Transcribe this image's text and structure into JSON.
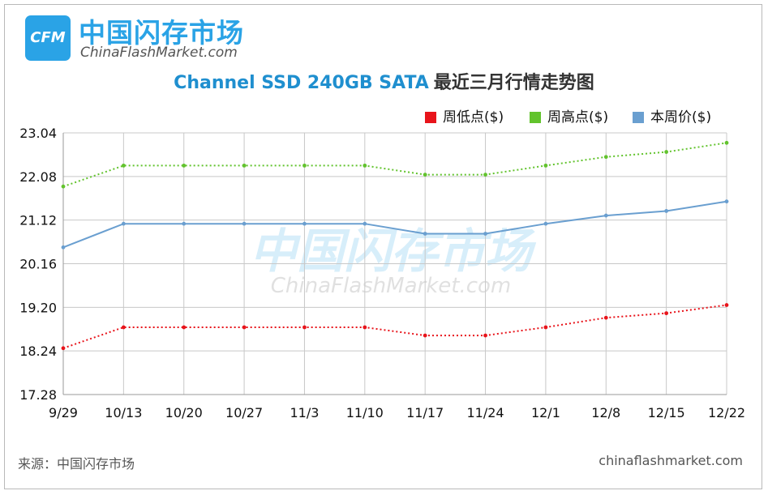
{
  "brand": {
    "logo_mark": "CFM",
    "name_cn": "中国闪存市场",
    "name_en": "ChinaFlashMarket.com"
  },
  "title": {
    "main": "Channel SSD 240GB SATA",
    "sub": "最近三月行情走势图"
  },
  "watermark": {
    "cn": "中国闪存市场",
    "en": "ChinaFlashMarket.com"
  },
  "footer": {
    "source": "来源：中国闪存市场",
    "site": "chinaflashmarket.com"
  },
  "chart_data": {
    "type": "line",
    "categories": [
      "9/29",
      "10/13",
      "10/20",
      "10/27",
      "11/3",
      "11/10",
      "11/17",
      "11/24",
      "12/1",
      "12/8",
      "12/15",
      "12/22"
    ],
    "y_ticks": [
      "23.04",
      "22.08",
      "21.12",
      "20.16",
      "19.20",
      "18.24",
      "17.28"
    ],
    "ylim": [
      17.28,
      23.04
    ],
    "grid": true,
    "legend_position": "top-right",
    "series": [
      {
        "name": "周低点($)",
        "color": "#e8141b",
        "style": "dotted",
        "values": [
          18.3,
          18.76,
          18.76,
          18.76,
          18.76,
          18.76,
          18.58,
          18.58,
          18.76,
          18.97,
          19.07,
          19.25
        ]
      },
      {
        "name": "周高点($)",
        "color": "#62c32d",
        "style": "dotted",
        "values": [
          21.86,
          22.32,
          22.32,
          22.32,
          22.32,
          22.32,
          22.12,
          22.12,
          22.32,
          22.51,
          22.62,
          22.82
        ]
      },
      {
        "name": "本周价($)",
        "color": "#6a9fd0",
        "style": "solid",
        "values": [
          20.52,
          21.04,
          21.04,
          21.04,
          21.04,
          21.04,
          20.82,
          20.82,
          21.04,
          21.22,
          21.32,
          21.53
        ]
      }
    ]
  }
}
